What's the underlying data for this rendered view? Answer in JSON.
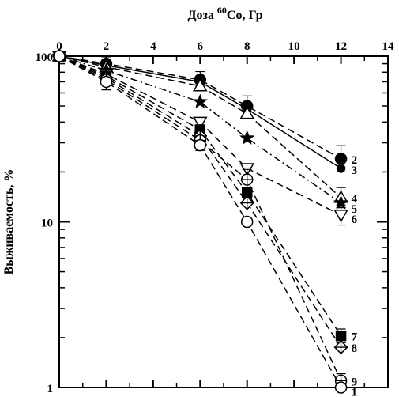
{
  "chart_data": {
    "type": "line",
    "title": {
      "prefix": "Доза ",
      "superscript": "60",
      "suffix": "Co, Гр"
    },
    "xlabel": "",
    "ylabel": "Выживаемость, %",
    "xlim": [
      0,
      14
    ],
    "ylim": [
      1,
      100
    ],
    "y_scale": "log",
    "x_axis_position": "top",
    "x_ticks": [
      0,
      2,
      4,
      6,
      8,
      10,
      12,
      14
    ],
    "x_tick_labels": [
      "0",
      "2",
      "4",
      "6",
      "8",
      "10",
      "12",
      "14"
    ],
    "y_ticks": [
      1,
      10,
      100
    ],
    "y_tick_labels": [
      "1",
      "10",
      "100"
    ],
    "grid": false,
    "legend": "none",
    "series": [
      {
        "name": "2",
        "marker": "filled-circle",
        "dash": "long-dash",
        "x": [
          0,
          2,
          6,
          8,
          12
        ],
        "y": [
          100,
          90,
          72,
          50,
          24
        ],
        "err": [
          0,
          0.1,
          0.12,
          0.15,
          0.2
        ]
      },
      {
        "name": "3",
        "marker": "filled-small-circle",
        "dash": "solid",
        "x": [
          0,
          2,
          6,
          8,
          12
        ],
        "y": [
          100,
          88,
          70,
          48,
          21
        ],
        "err": [
          0,
          0,
          0,
          0,
          0
        ]
      },
      {
        "name": "4",
        "marker": "open-triangle",
        "dash": "long-dash",
        "x": [
          0,
          2,
          6,
          8,
          12
        ],
        "y": [
          100,
          86,
          66,
          45,
          14
        ],
        "err": [
          0,
          0,
          0,
          0,
          0.15
        ]
      },
      {
        "name": "5",
        "marker": "filled-star",
        "dash": "dash-dot",
        "x": [
          0,
          2,
          6,
          8,
          12
        ],
        "y": [
          100,
          82,
          53,
          32,
          13
        ],
        "err": [
          0,
          0,
          0,
          0,
          0
        ]
      },
      {
        "name": "6",
        "marker": "open-triangle-down",
        "dash": "long-dash",
        "x": [
          0,
          2,
          6,
          8,
          12
        ],
        "y": [
          100,
          78,
          40,
          21,
          11
        ],
        "err": [
          0,
          0,
          0,
          0,
          0.15
        ]
      },
      {
        "name": "7",
        "marker": "filled-square",
        "dash": "long-dash",
        "x": [
          0,
          2,
          6,
          8,
          12
        ],
        "y": [
          100,
          76,
          36,
          15,
          2.05
        ],
        "err": [
          0,
          0,
          0,
          0,
          0.1
        ]
      },
      {
        "name": "8",
        "marker": "open-diamond-plus",
        "dash": "long-dash",
        "x": [
          0,
          2,
          6,
          8,
          12
        ],
        "y": [
          100,
          74,
          33,
          13,
          1.75
        ],
        "err": [
          0,
          0,
          0,
          0,
          0
        ]
      },
      {
        "name": "9",
        "marker": "open-circle-plus",
        "dash": "long-dash",
        "x": [
          0,
          2,
          6,
          8,
          12
        ],
        "y": [
          100,
          72,
          31,
          18,
          1.1
        ],
        "err": [
          0,
          0.15,
          0.15,
          0.15,
          0.1
        ]
      },
      {
        "name": "1",
        "marker": "open-circle",
        "dash": "long-dash",
        "x": [
          0,
          2,
          6,
          8,
          12
        ],
        "y": [
          100,
          70,
          29,
          10,
          1.0
        ],
        "err": [
          0,
          0,
          0,
          0,
          0
        ]
      }
    ]
  }
}
